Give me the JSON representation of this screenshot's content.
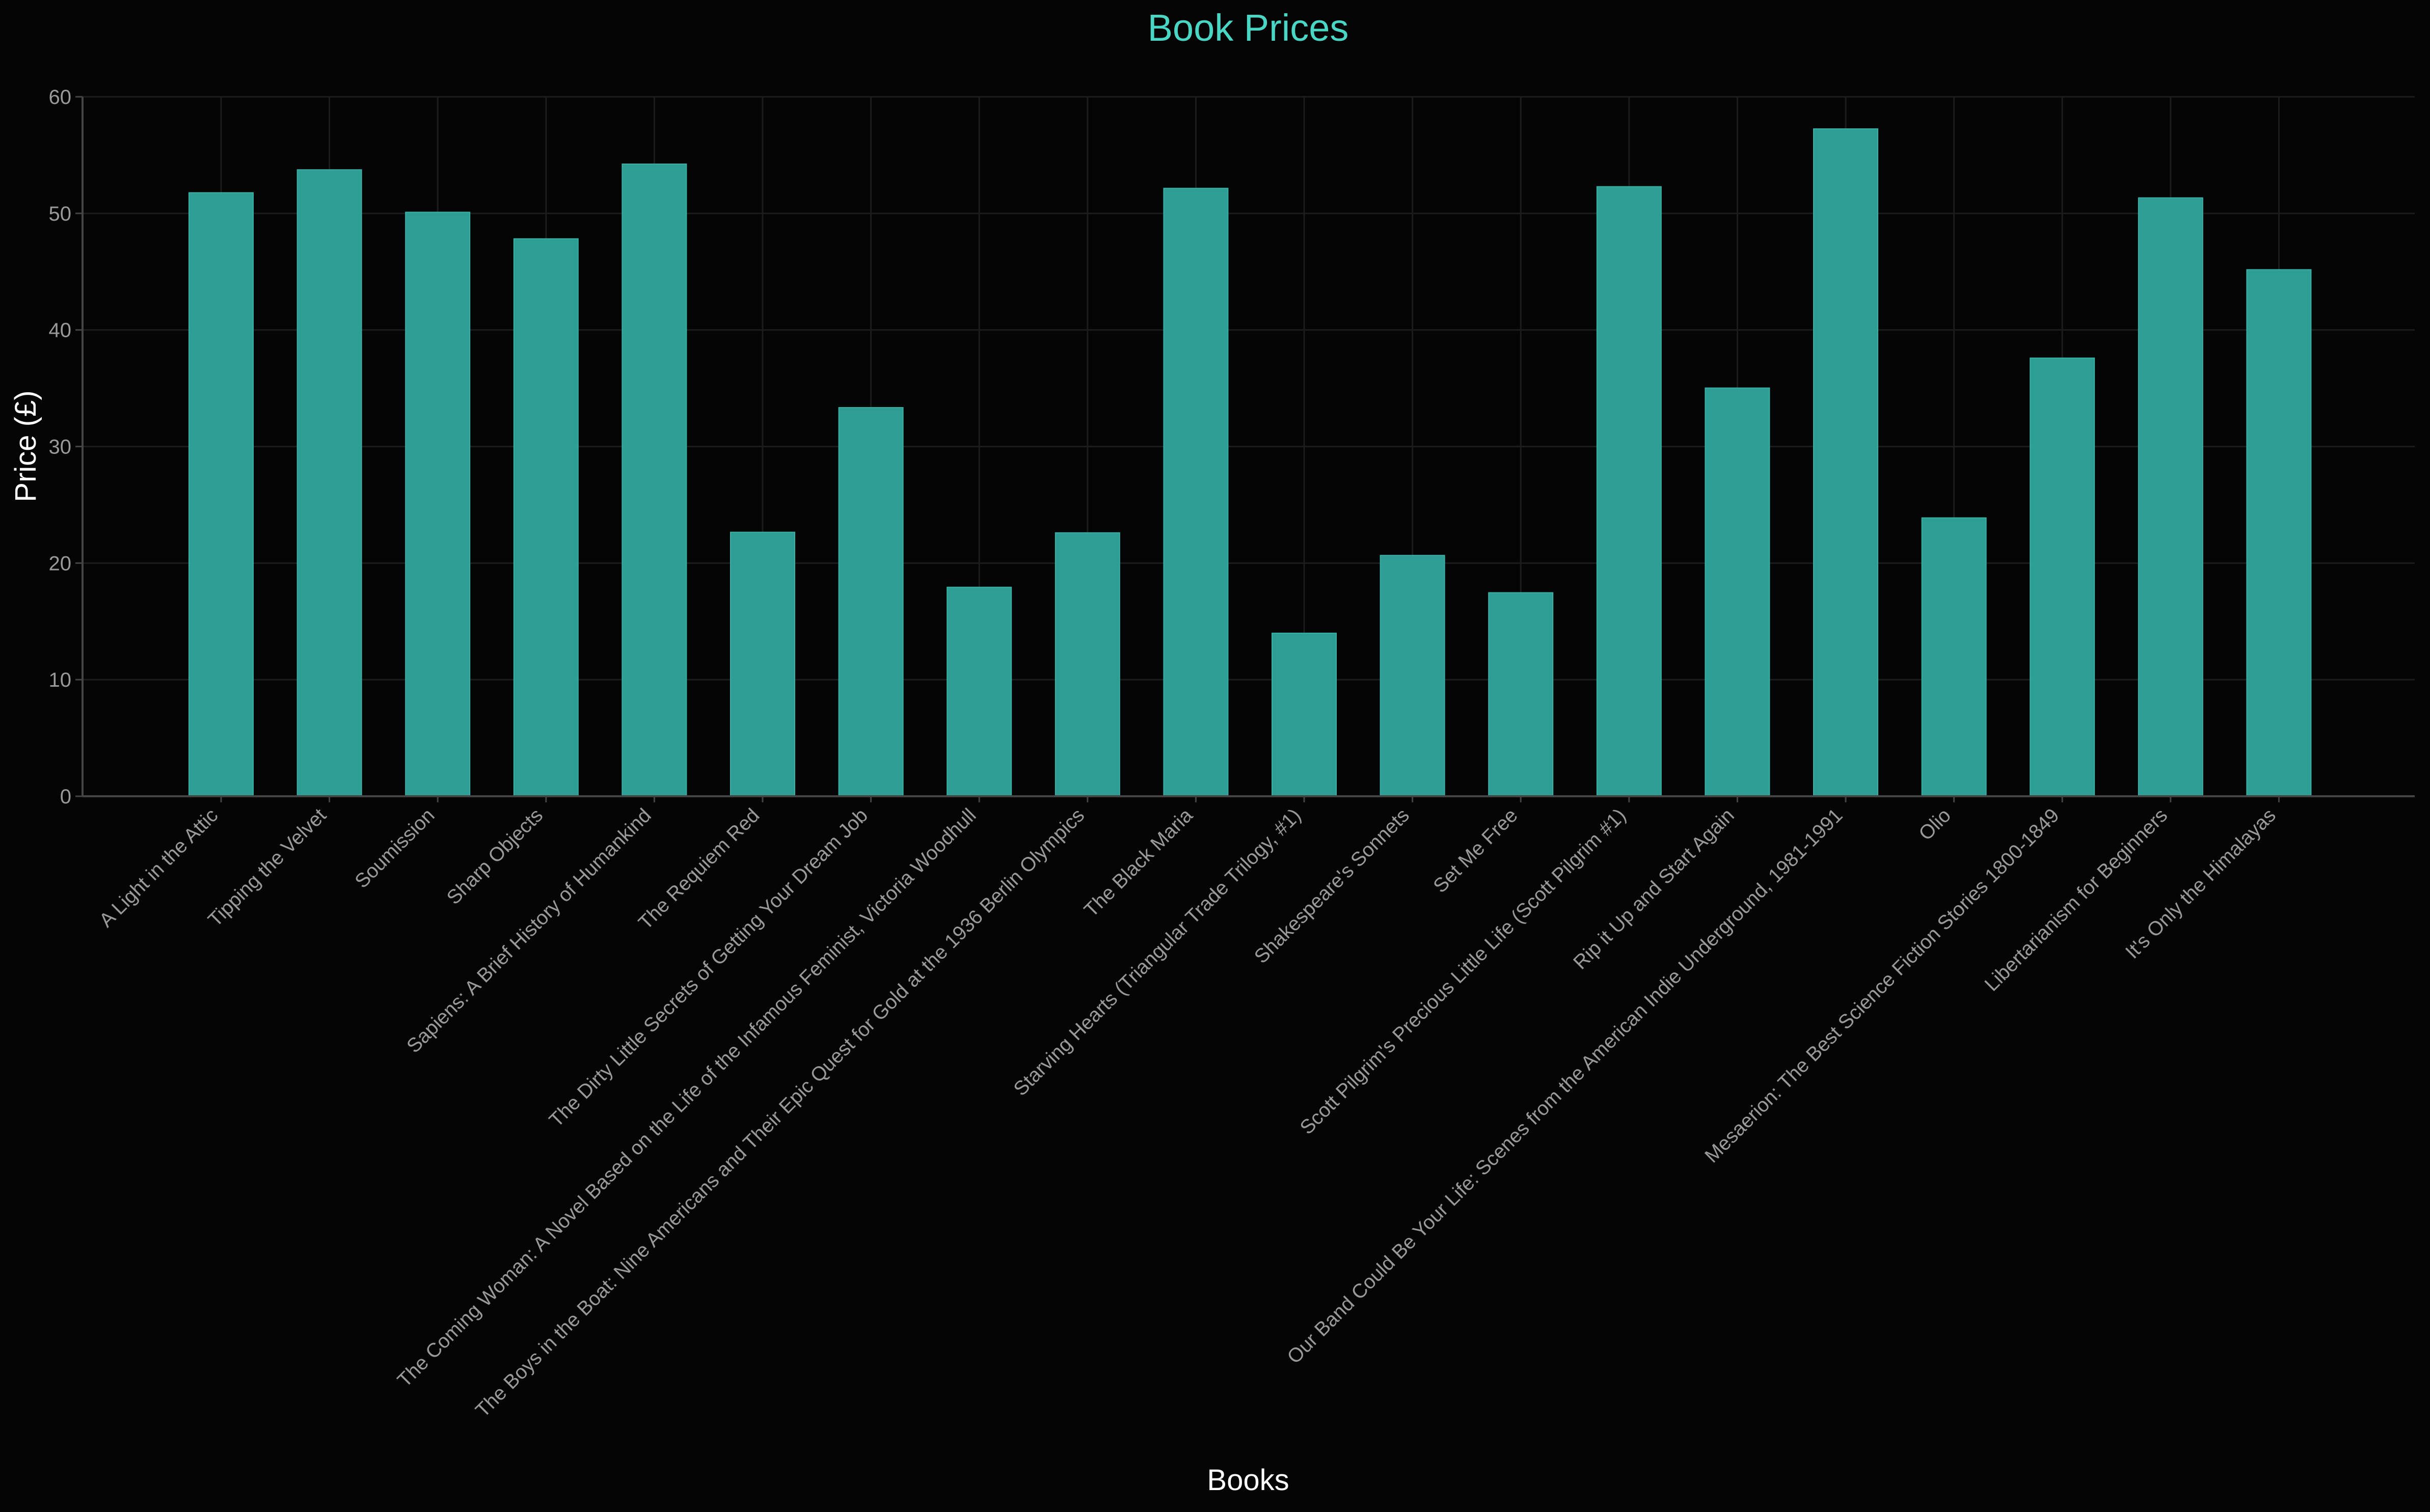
{
  "chart_data": {
    "type": "bar",
    "title": "Book Prices",
    "xlabel": "Books",
    "ylabel": "Price (£)",
    "ylim": [
      0,
      60
    ],
    "yticks": [
      "0",
      "10",
      "20",
      "30",
      "40",
      "50",
      "60"
    ],
    "grid": true,
    "colors": {
      "bar": "#2e9d93",
      "bar_edge": "#39b0a5",
      "title": "#49d6c4",
      "background": "#050505"
    },
    "categories": [
      "A Light in the Attic",
      "Tipping the Velvet",
      "Soumission",
      "Sharp Objects",
      "Sapiens: A Brief History of Humankind",
      "The Requiem Red",
      "The Dirty Little Secrets of Getting Your Dream Job",
      "The Coming Woman: A Novel Based on the Life of the Infamous Feminist, Victoria Woodhull",
      "The Boys in the Boat: Nine Americans and Their Epic Quest for Gold at the 1936 Berlin Olympics",
      "The Black Maria",
      "Starving Hearts (Triangular Trade Trilogy, #1)",
      "Shakespeare's Sonnets",
      "Set Me Free",
      "Scott Pilgrim's Precious Little Life (Scott Pilgrim #1)",
      "Rip it Up and Start Again",
      "Our Band Could Be Your Life: Scenes from the American Indie Underground, 1981-1991",
      "Olio",
      "Mesaerion: The Best Science Fiction Stories 1800-1849",
      "Libertarianism for Beginners",
      "It's Only the Himalayas"
    ],
    "values": [
      51.77,
      53.74,
      50.1,
      47.82,
      54.23,
      22.65,
      33.34,
      17.93,
      22.6,
      52.15,
      13.99,
      20.66,
      17.46,
      52.29,
      35.02,
      57.25,
      23.88,
      37.59,
      51.33,
      45.17
    ]
  }
}
